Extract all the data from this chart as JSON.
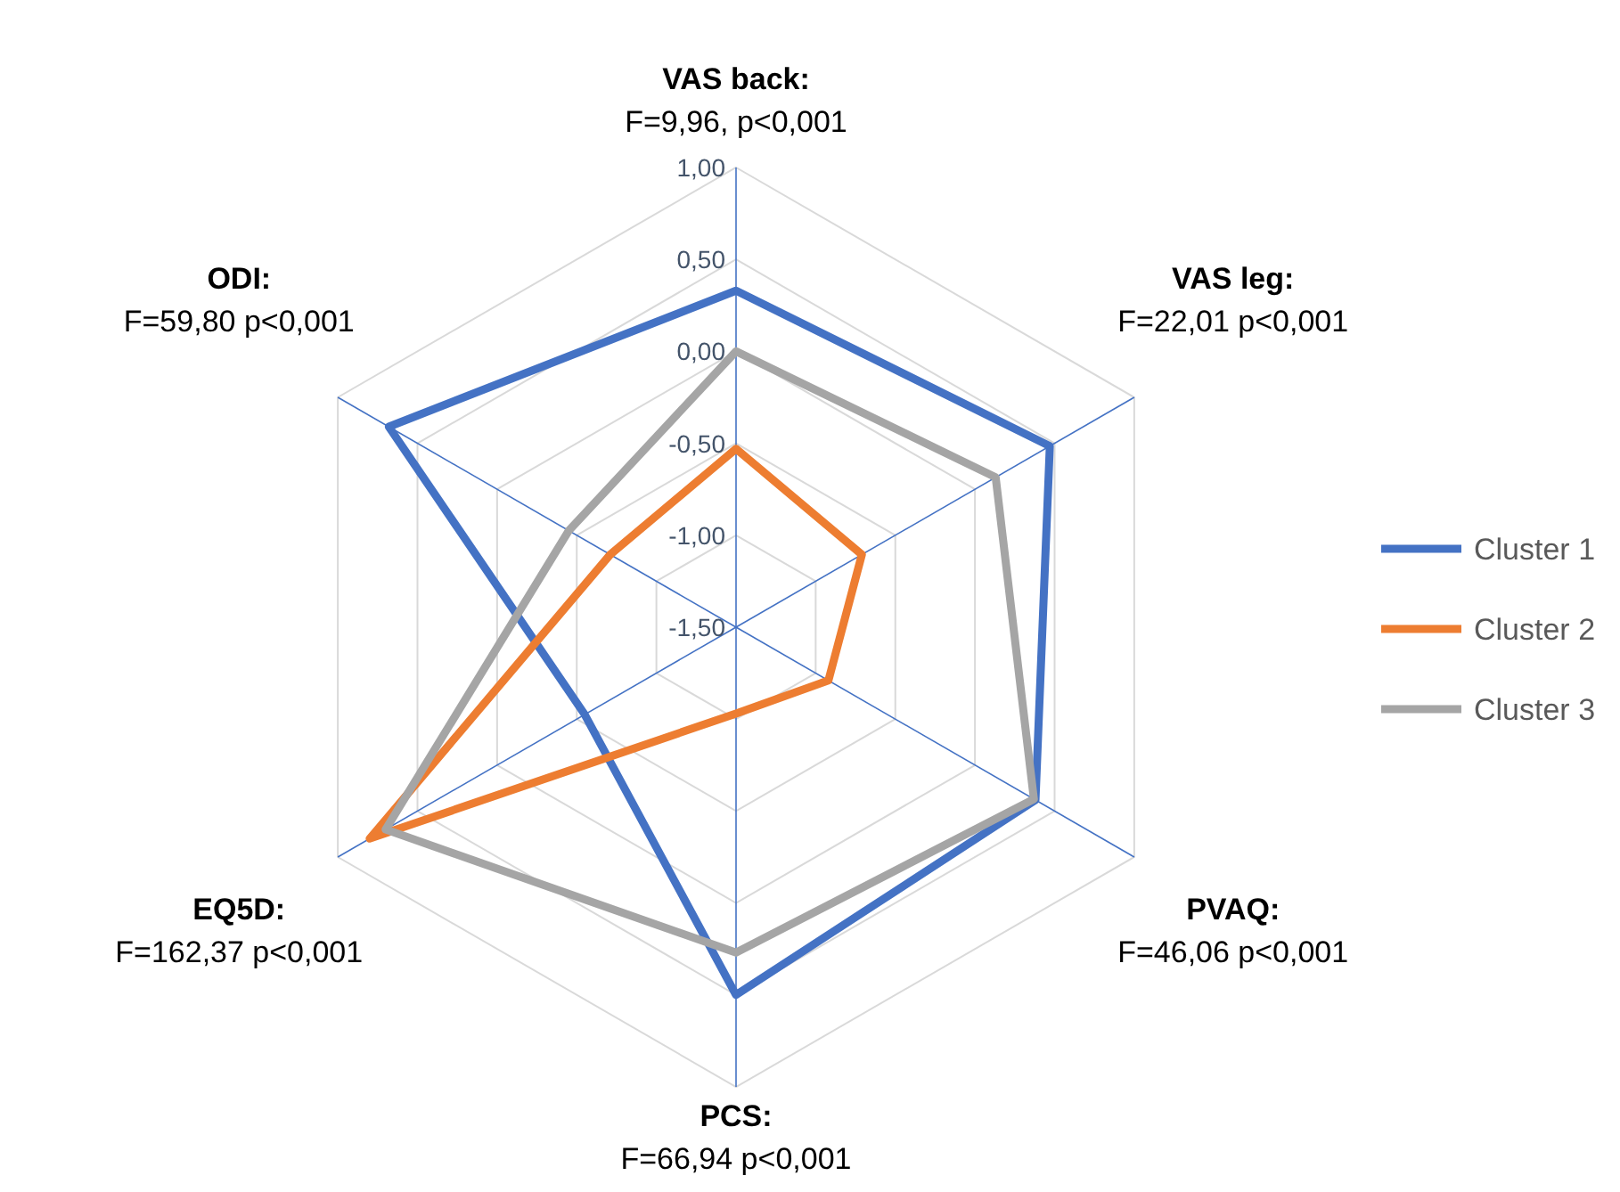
{
  "chart_data": {
    "type": "radar",
    "categories": [
      "VAS back:\nF=9,96, p<0,001",
      "VAS leg:\nF=22,01 p<0,001",
      "PVAQ:\nF=46,06 p<0,001",
      "PCS:\nF=66,94 p<0,001",
      "EQ5D:\nF=162,37 p<0,001",
      "ODI:\nF=59,80 p<0,001"
    ],
    "series": [
      {
        "name": "Cluster 1",
        "color": "#4472c4",
        "values": [
          0.33,
          0.47,
          0.38,
          0.5,
          -0.55,
          0.68
        ]
      },
      {
        "name": "Cluster 2",
        "color": "#ed7d31",
        "values": [
          -0.53,
          -0.71,
          -0.92,
          -1.03,
          0.8,
          -0.71
        ]
      },
      {
        "name": "Cluster 3",
        "color": "#a5a5a5",
        "values": [
          0.0,
          0.13,
          0.37,
          0.27,
          0.7,
          -0.45
        ]
      }
    ],
    "ylim": [
      -1.5,
      1
    ],
    "yticks": [
      {
        "value": -1.5,
        "label": "-1,50"
      },
      {
        "value": -1,
        "label": "-1,00"
      },
      {
        "value": -0.5,
        "label": "-0,50"
      },
      {
        "value": 0,
        "label": "0,00"
      },
      {
        "value": 0.5,
        "label": "0,50"
      },
      {
        "value": 1,
        "label": "1,00"
      }
    ],
    "grid": true,
    "legend": "right",
    "line_style": "solid",
    "marker": "none"
  }
}
